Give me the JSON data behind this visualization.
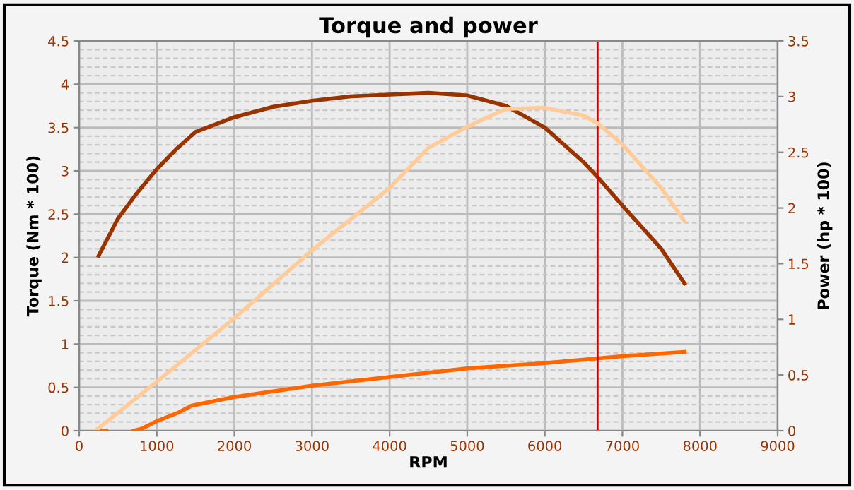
{
  "chart_data": {
    "type": "line",
    "title": "Torque and power",
    "xlabel": "RPM",
    "ylabel": "Torque (Nm * 100)",
    "y2label": "Power (hp * 100)",
    "xlim": [
      0,
      9000
    ],
    "xticks": [
      0,
      1000,
      2000,
      3000,
      4000,
      5000,
      6000,
      7000,
      8000,
      9000
    ],
    "ylim": [
      0,
      4.5
    ],
    "yticks": [
      0,
      0.5,
      1,
      1.5,
      2,
      2.5,
      3,
      3.5,
      4,
      4.5
    ],
    "y2lim": [
      0,
      3.5
    ],
    "y2ticks": [
      0,
      0.5,
      1,
      1.5,
      2,
      2.5,
      3,
      3.5
    ],
    "grid": true,
    "line_style": "solid",
    "ref_lines": [
      {
        "axis": "x",
        "value": 6680,
        "color": "#cc0000"
      }
    ],
    "series": [
      {
        "color": "#993300",
        "x": [
          250,
          500,
          750,
          1000,
          1250,
          1500,
          2000,
          2500,
          3000,
          3500,
          4000,
          4500,
          5000,
          5500,
          6000,
          6500,
          6680,
          7000,
          7500,
          7800
        ],
        "values": [
          2.02,
          2.45,
          2.75,
          3.02,
          3.25,
          3.45,
          3.62,
          3.74,
          3.81,
          3.86,
          3.88,
          3.9,
          3.87,
          3.75,
          3.5,
          3.1,
          2.93,
          2.6,
          2.1,
          1.7
        ]
      },
      {
        "color": "#ffcc99",
        "axis": "y2",
        "x": [
          210,
          1000,
          2000,
          3000,
          4000,
          4500,
          5000,
          5500,
          6000,
          6500,
          6680,
          7000,
          7500,
          7800
        ],
        "values": [
          0,
          0.44,
          1.01,
          1.62,
          2.18,
          2.54,
          2.73,
          2.89,
          2.9,
          2.83,
          2.76,
          2.57,
          2.18,
          1.88
        ]
      },
      {
        "color": "#ff6600",
        "x": [
          250,
          350,
          500,
          700,
          800,
          1000,
          1280,
          1450,
          2000,
          3000,
          4000,
          5000,
          6000,
          7000,
          7800
        ],
        "values": [
          0,
          0,
          null,
          0,
          0.02,
          0.11,
          0.21,
          0.29,
          0.39,
          0.52,
          0.62,
          0.72,
          0.78,
          0.86,
          0.91
        ]
      }
    ]
  }
}
